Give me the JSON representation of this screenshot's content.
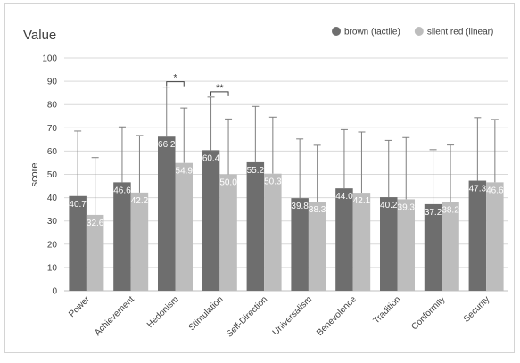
{
  "chart_data": {
    "type": "bar",
    "title": "Value",
    "xlabel": "",
    "ylabel": "score",
    "ylim": [
      0,
      100
    ],
    "yticks": [
      0,
      10,
      20,
      30,
      40,
      50,
      60,
      70,
      80,
      90,
      100
    ],
    "grid": true,
    "legend_position": "top-right",
    "categories": [
      "Power",
      "Achievement",
      "Hedonism",
      "Stimulation",
      "Self-Direction",
      "Universalism",
      "Benevolence",
      "Tradition",
      "Conformity",
      "Security"
    ],
    "series": [
      {
        "name": "brown (tactile)",
        "color": "#6e6e6e",
        "values": [
          40.7,
          46.6,
          66.2,
          60.4,
          55.2,
          39.8,
          44.0,
          40.2,
          37.2,
          47.3
        ],
        "error_upper": [
          68.6,
          70.4,
          87.5,
          83.2,
          79.2,
          65.2,
          69.2,
          64.6,
          60.6,
          74.4
        ]
      },
      {
        "name": "silent red (linear)",
        "color": "#bdbdbd",
        "values": [
          32.6,
          42.2,
          54.9,
          50.0,
          50.3,
          38.3,
          42.1,
          39.3,
          38.2,
          46.6
        ],
        "error_upper": [
          57.2,
          66.7,
          78.5,
          73.8,
          74.6,
          62.5,
          68.2,
          65.8,
          62.6,
          73.6
        ]
      }
    ],
    "annotations": [
      {
        "category": "Hedonism",
        "text": "*"
      },
      {
        "category": "Stimulation",
        "text": "**"
      }
    ]
  }
}
